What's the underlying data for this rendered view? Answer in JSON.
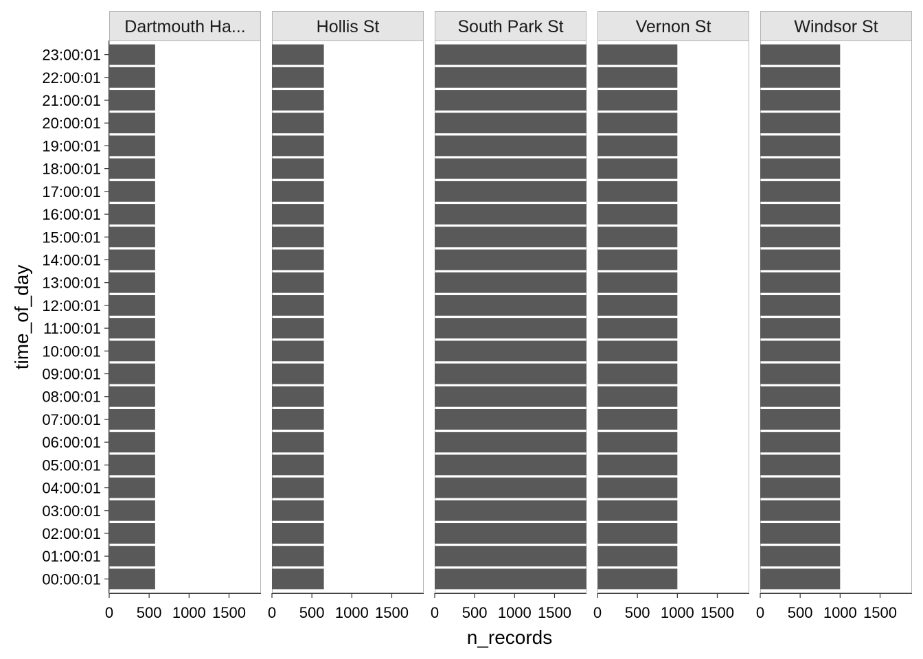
{
  "chart_data": {
    "type": "bar",
    "orientation": "horizontal",
    "faceted": true,
    "xlabel": "n_records",
    "ylabel": "time_of_day",
    "xlim": [
      0,
      1900
    ],
    "xticks": [
      0,
      500,
      1000,
      1500
    ],
    "categories": [
      "00:00:01",
      "01:00:01",
      "02:00:01",
      "03:00:01",
      "04:00:01",
      "05:00:01",
      "06:00:01",
      "07:00:01",
      "08:00:01",
      "09:00:01",
      "10:00:01",
      "11:00:01",
      "12:00:01",
      "13:00:01",
      "14:00:01",
      "15:00:01",
      "16:00:01",
      "17:00:01",
      "18:00:01",
      "19:00:01",
      "20:00:01",
      "21:00:01",
      "22:00:01",
      "23:00:01"
    ],
    "panels": [
      {
        "name": "Dartmouth Ha...",
        "values": [
          575,
          575,
          575,
          575,
          575,
          575,
          575,
          575,
          575,
          575,
          575,
          575,
          575,
          575,
          575,
          575,
          575,
          575,
          575,
          575,
          575,
          575,
          575,
          575
        ]
      },
      {
        "name": "Hollis St",
        "values": [
          650,
          650,
          650,
          650,
          650,
          650,
          650,
          650,
          650,
          650,
          650,
          650,
          650,
          650,
          650,
          650,
          650,
          650,
          650,
          650,
          650,
          650,
          650,
          650
        ]
      },
      {
        "name": "South Park St",
        "values": [
          1900,
          1900,
          1900,
          1900,
          1900,
          1900,
          1900,
          1900,
          1900,
          1900,
          1900,
          1900,
          1900,
          1900,
          1900,
          1900,
          1900,
          1900,
          1900,
          1900,
          1900,
          1900,
          1900,
          1900
        ]
      },
      {
        "name": "Vernon St",
        "values": [
          1000,
          1000,
          1000,
          1000,
          1000,
          1000,
          1000,
          1000,
          1000,
          1000,
          1000,
          1000,
          1000,
          1000,
          1000,
          1000,
          1000,
          1000,
          1000,
          1000,
          1000,
          1000,
          1000,
          1000
        ]
      },
      {
        "name": "Windsor St",
        "values": [
          1000,
          1000,
          1000,
          1000,
          1000,
          1000,
          1000,
          1000,
          1000,
          1000,
          1000,
          1000,
          1000,
          1000,
          1000,
          1000,
          1000,
          1000,
          1000,
          1000,
          1000,
          1000,
          1000,
          1000
        ]
      }
    ],
    "bar_color": "#595959",
    "strip_color": "#e5e5e5",
    "grid": false,
    "legend": "none"
  }
}
